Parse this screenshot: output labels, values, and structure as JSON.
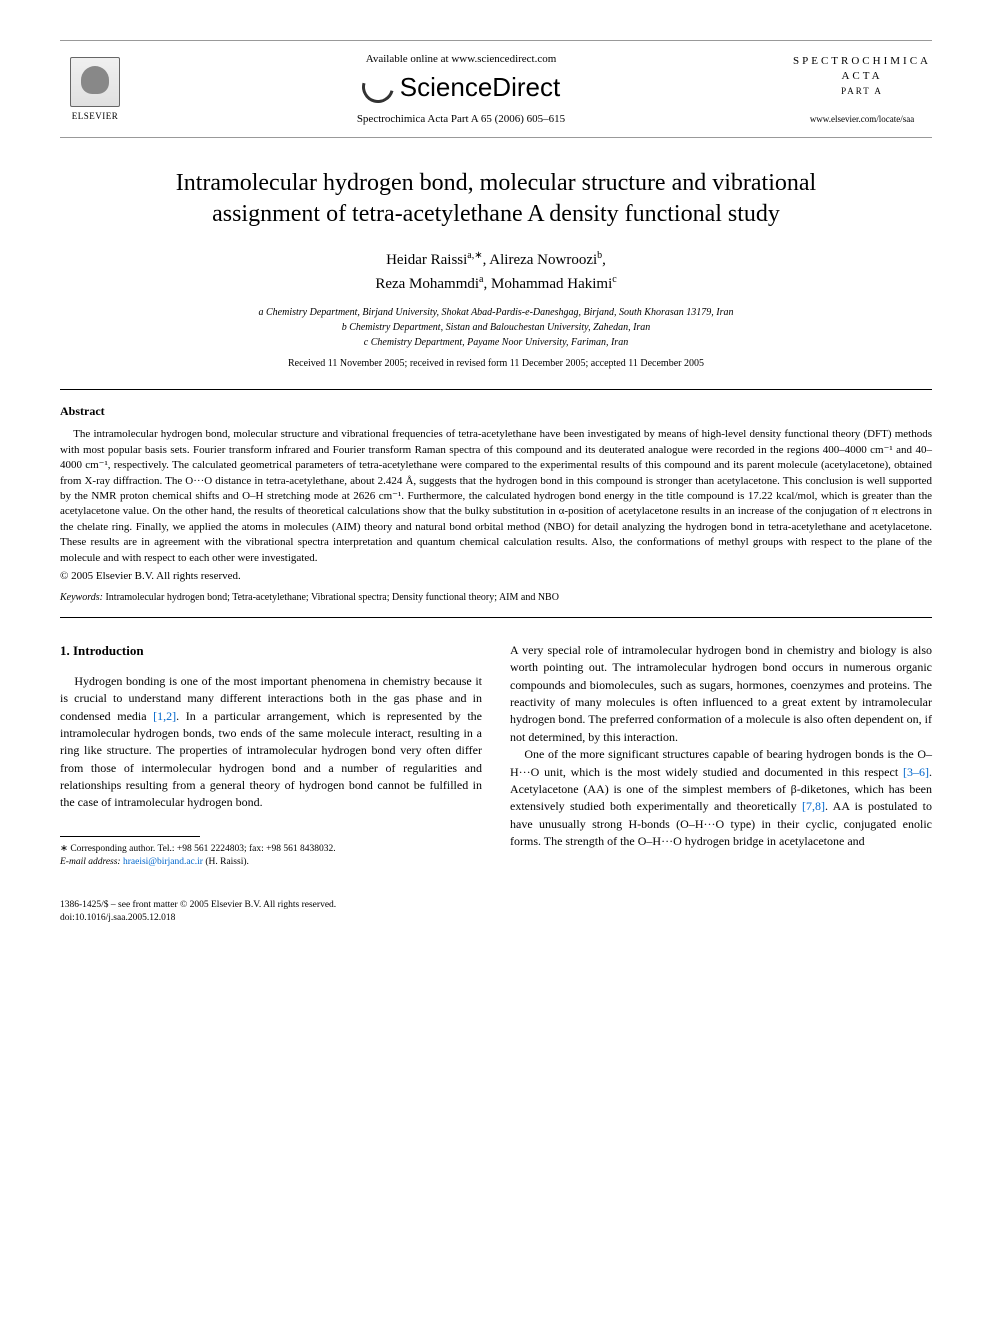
{
  "header": {
    "available_online": "Available online at www.sciencedirect.com",
    "brand_name": "ScienceDirect",
    "citation": "Spectrochimica Acta Part A 65 (2006) 605–615",
    "publisher_label": "ELSEVIER",
    "journal_name": "SPECTROCHIMICA ACTA",
    "journal_part": "PART A",
    "journal_url": "www.elsevier.com/locate/saa"
  },
  "article": {
    "title": "Intramolecular hydrogen bond, molecular structure and vibrational assignment of tetra-acetylethane A density functional study",
    "authors_line1": "Heidar Raissi",
    "author1_sup": "a,∗",
    "authors_line1b": ", Alireza Nowroozi",
    "author2_sup": "b",
    "authors_line1c": ",",
    "authors_line2a": "Reza Mohammdi",
    "author3_sup": "a",
    "authors_line2b": ", Mohammad Hakimi",
    "author4_sup": "c",
    "affiliation_a": "a Chemistry Department, Birjand University, Shokat Abad-Pardis-e-Daneshgag, Birjand, South Khorasan 13179, Iran",
    "affiliation_b": "b Chemistry Department, Sistan and Balouchestan University, Zahedan, Iran",
    "affiliation_c": "c Chemistry Department, Payame Noor University, Fariman, Iran",
    "dates": "Received 11 November 2005; received in revised form 11 December 2005; accepted 11 December 2005"
  },
  "abstract": {
    "heading": "Abstract",
    "body": "The intramolecular hydrogen bond, molecular structure and vibrational frequencies of tetra-acetylethane have been investigated by means of high-level density functional theory (DFT) methods with most popular basis sets. Fourier transform infrared and Fourier transform Raman spectra of this compound and its deuterated analogue were recorded in the regions 400–4000 cm⁻¹ and 40–4000 cm⁻¹, respectively. The calculated geometrical parameters of tetra-acetylethane were compared to the experimental results of this compound and its parent molecule (acetylacetone), obtained from X-ray diffraction. The O···O distance in tetra-acetylethane, about 2.424 Å, suggests that the hydrogen bond in this compound is stronger than acetylacetone. This conclusion is well supported by the NMR proton chemical shifts and O–H stretching mode at 2626 cm⁻¹. Furthermore, the calculated hydrogen bond energy in the title compound is 17.22 kcal/mol, which is greater than the acetylacetone value. On the other hand, the results of theoretical calculations show that the bulky substitution in α-position of acetylacetone results in an increase of the conjugation of π electrons in the chelate ring. Finally, we applied the atoms in molecules (AIM) theory and natural bond orbital method (NBO) for detail analyzing the hydrogen bond in tetra-acetylethane and acetylacetone. These results are in agreement with the vibrational spectra interpretation and quantum chemical calculation results. Also, the conformations of methyl groups with respect to the plane of the molecule and with respect to each other were investigated.",
    "copyright": "© 2005 Elsevier B.V. All rights reserved.",
    "keywords_label": "Keywords:",
    "keywords": "Intramolecular hydrogen bond; Tetra-acetylethane; Vibrational spectra; Density functional theory; AIM and NBO"
  },
  "introduction": {
    "heading": "1. Introduction",
    "col1_p1a": "Hydrogen bonding is one of the most important phenomena in chemistry because it is crucial to understand many different interactions both in the gas phase and in condensed media ",
    "col1_ref1": "[1,2]",
    "col1_p1b": ". In a particular arrangement, which is represented by the intramolecular hydrogen bonds, two ends of the same molecule interact, resulting in a ring like structure. The properties of intramolecular hydrogen bond very often differ from those of intermolecular hydrogen bond and a number of regularities and relationships resulting from a general theory of hydrogen bond cannot be fulfilled in the case of intramolecular hydrogen bond.",
    "col2_p1": "A very special role of intramolecular hydrogen bond in chemistry and biology is also worth pointing out. The intramolecular hydrogen bond occurs in numerous organic compounds and biomolecules, such as sugars, hormones, coenzymes and proteins. The reactivity of many molecules is often influenced to a great extent by intramolecular hydrogen bond. The preferred conformation of a molecule is also often dependent on, if not determined, by this interaction.",
    "col2_p2a": "One of the more significant structures capable of bearing hydrogen bonds is the O–H···O unit, which is the most widely studied and documented in this respect ",
    "col2_ref1": "[3–6]",
    "col2_p2b": ". Acetylacetone (AA) is one of the simplest members of β-diketones, which has been extensively studied both experimentally and theoretically ",
    "col2_ref2": "[7,8]",
    "col2_p2c": ". AA is postulated to have unusually strong H-bonds (O–H···O type) in their cyclic, conjugated enolic forms. The strength of the O–H···O hydrogen bridge in acetylacetone and"
  },
  "footnote": {
    "corr_label": "∗ Corresponding author. Tel.: +98 561 2224803; fax: +98 561 8438032.",
    "email_label": "E-mail address:",
    "email": "hraeisi@birjand.ac.ir",
    "email_suffix": "(H. Raissi)."
  },
  "footer": {
    "line1": "1386-1425/$ – see front matter © 2005 Elsevier B.V. All rights reserved.",
    "doi": "doi:10.1016/j.saa.2005.12.018"
  },
  "colors": {
    "link": "#0066cc",
    "text": "#000000",
    "rule": "#999999"
  }
}
